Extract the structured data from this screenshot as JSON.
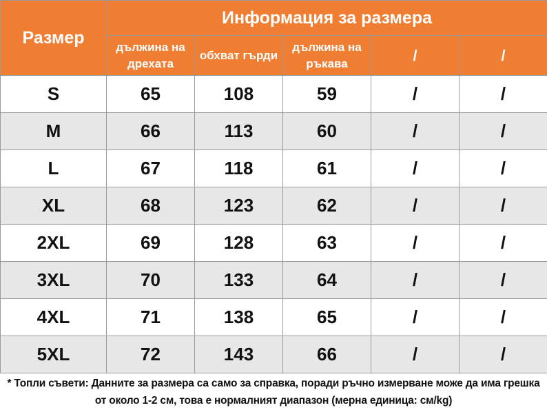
{
  "header": {
    "size_label": "Размер",
    "group_label": "Информация за размера",
    "columns": [
      "дължина на дрехата",
      "обхват гърди",
      "дължина на ръкава",
      "/",
      "/"
    ]
  },
  "rows": [
    {
      "size": "S",
      "length": "65",
      "chest": "108",
      "sleeve": "59",
      "c4": "/",
      "c5": "/"
    },
    {
      "size": "M",
      "length": "66",
      "chest": "113",
      "sleeve": "60",
      "c4": "/",
      "c5": "/"
    },
    {
      "size": "L",
      "length": "67",
      "chest": "118",
      "sleeve": "61",
      "c4": "/",
      "c5": "/"
    },
    {
      "size": "XL",
      "length": "68",
      "chest": "123",
      "sleeve": "62",
      "c4": "/",
      "c5": "/"
    },
    {
      "size": "2XL",
      "length": "69",
      "chest": "128",
      "sleeve": "63",
      "c4": "/",
      "c5": "/"
    },
    {
      "size": "3XL",
      "length": "70",
      "chest": "133",
      "sleeve": "64",
      "c4": "/",
      "c5": "/"
    },
    {
      "size": "4XL",
      "length": "71",
      "chest": "138",
      "sleeve": "65",
      "c4": "/",
      "c5": "/"
    },
    {
      "size": "5XL",
      "length": "72",
      "chest": "143",
      "sleeve": "66",
      "c4": "/",
      "c5": "/"
    }
  ],
  "note": "* Топли съвети: Данните за размера са само за справка, поради ръчно измерване може да има грешка от около 1-2 см, това е нормалният диапазон (мерна единица: см/kg)",
  "colors": {
    "header_bg": "#ef7d32",
    "header_text": "#ffffff",
    "row_alt_bg": "#e7e7e7",
    "border": "#9a9a9a"
  }
}
